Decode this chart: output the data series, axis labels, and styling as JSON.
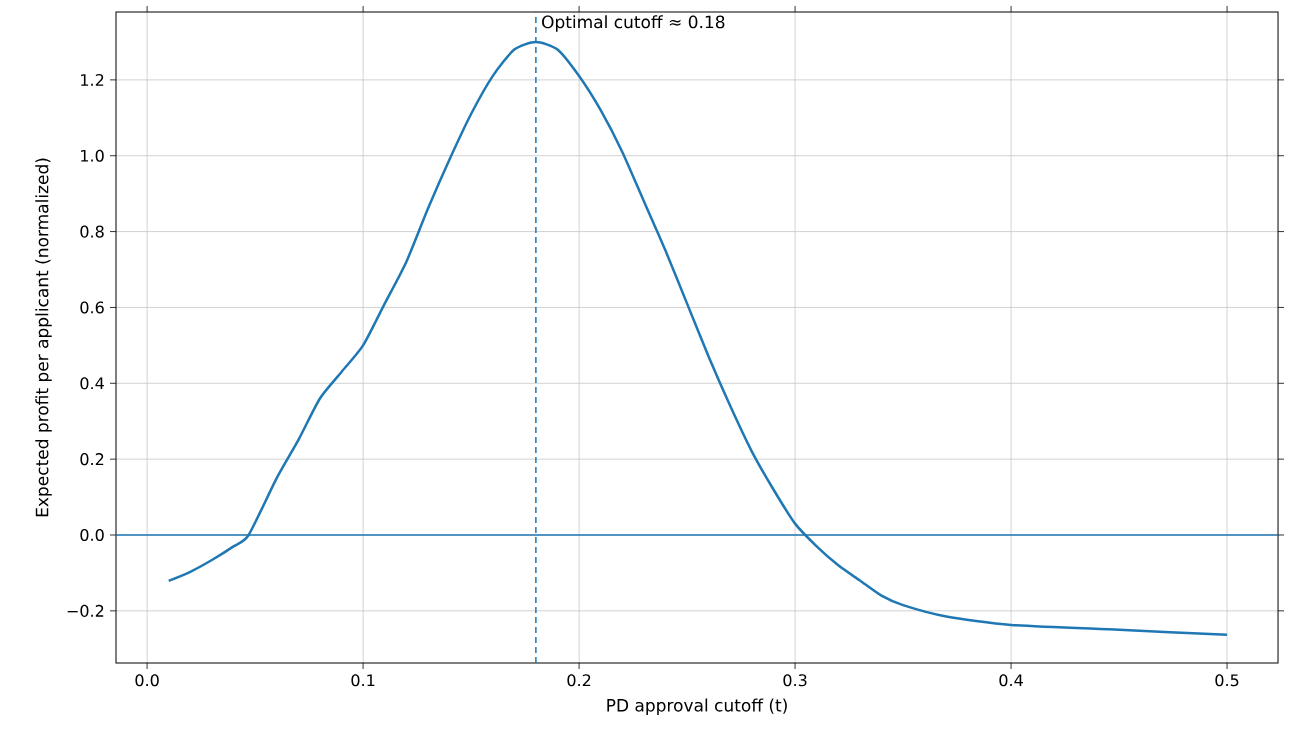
{
  "chart_data": {
    "type": "line",
    "xlabel": "PD approval cutoff (t)",
    "ylabel": "Expected profit per applicant (normalized)",
    "x": [
      0.01,
      0.02,
      0.03,
      0.04,
      0.047,
      0.06,
      0.07,
      0.08,
      0.09,
      0.1,
      0.11,
      0.12,
      0.13,
      0.14,
      0.15,
      0.16,
      0.17,
      0.18,
      0.19,
      0.2,
      0.21,
      0.22,
      0.23,
      0.24,
      0.25,
      0.26,
      0.27,
      0.28,
      0.29,
      0.3,
      0.31,
      0.32,
      0.33,
      0.34,
      0.35,
      0.37,
      0.4,
      0.45,
      0.5
    ],
    "series": [
      {
        "color": "#1f77b4",
        "values": [
          -0.121,
          -0.097,
          -0.066,
          -0.03,
          0.0,
          0.15,
          0.25,
          0.36,
          0.43,
          0.5,
          0.61,
          0.72,
          0.86,
          0.99,
          1.11,
          1.21,
          1.28,
          1.3,
          1.28,
          1.21,
          1.12,
          1.01,
          0.88,
          0.75,
          0.61,
          0.47,
          0.34,
          0.22,
          0.12,
          0.03,
          -0.03,
          -0.08,
          -0.12,
          -0.16,
          -0.185,
          -0.215,
          -0.237,
          -0.25,
          -0.263
        ]
      }
    ],
    "xlim": [
      -0.0144,
      0.5236
    ],
    "ylim": [
      -0.3375,
      1.379
    ],
    "xticks": [
      {
        "value": 0,
        "label": "0.0"
      },
      0.1,
      0.2,
      0.3,
      0.4,
      0.5
    ],
    "yticks": [
      {
        "value": -0.2,
        "label": "−0.2"
      },
      {
        "value": 0,
        "label": "0.0"
      },
      0.2,
      0.4,
      0.6,
      0.8,
      {
        "value": 1,
        "label": "1.0"
      },
      1.2
    ],
    "ref_lines": [
      {
        "axis": "y",
        "value": 0,
        "color": "#1f77b4",
        "line_style": "solid"
      },
      {
        "axis": "x",
        "value": 0.18,
        "label": "Optimal cutoff ≈ 0.18",
        "color": "#1f77b4",
        "line_style": "dashed"
      }
    ],
    "grid": true,
    "marker": "none",
    "line_style": "solid"
  }
}
